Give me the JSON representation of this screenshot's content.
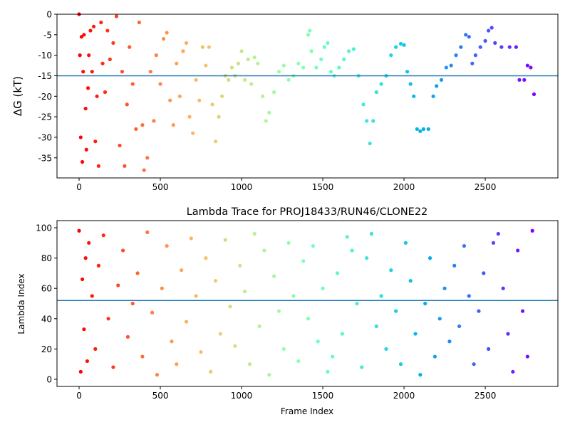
{
  "chart_data": [
    {
      "type": "scatter",
      "ylabel": "ΔG (kT)",
      "colormap": "rainbow_r",
      "hline": -15,
      "hline_color": "#1f77b4",
      "xlim": [
        -136,
        2947
      ],
      "ylim": [
        -39.9,
        0
      ],
      "xticks": [
        0,
        500,
        1000,
        1500,
        2000,
        2500
      ],
      "yticks": [
        0,
        -5,
        -10,
        -15,
        -20,
        -25,
        -30,
        -35
      ],
      "x": [
        0,
        5,
        10,
        15,
        20,
        25,
        30,
        40,
        45,
        55,
        60,
        70,
        80,
        90,
        100,
        110,
        120,
        135,
        145,
        160,
        175,
        190,
        210,
        230,
        250,
        265,
        280,
        295,
        310,
        330,
        350,
        370,
        390,
        400,
        420,
        440,
        460,
        475,
        500,
        520,
        540,
        560,
        580,
        600,
        620,
        640,
        660,
        680,
        700,
        720,
        740,
        760,
        780,
        800,
        820,
        840,
        860,
        880,
        900,
        920,
        940,
        960,
        980,
        1000,
        1020,
        1040,
        1060,
        1080,
        1100,
        1130,
        1150,
        1170,
        1200,
        1230,
        1260,
        1290,
        1320,
        1350,
        1380,
        1410,
        1420,
        1430,
        1460,
        1490,
        1510,
        1530,
        1550,
        1570,
        1600,
        1630,
        1660,
        1690,
        1720,
        1750,
        1770,
        1790,
        1810,
        1830,
        1860,
        1890,
        1920,
        1950,
        1980,
        2000,
        2020,
        2040,
        2060,
        2080,
        2100,
        2120,
        2150,
        2180,
        2200,
        2230,
        2260,
        2290,
        2320,
        2350,
        2380,
        2400,
        2420,
        2440,
        2470,
        2500,
        2520,
        2540,
        2560,
        2600,
        2650,
        2690,
        2710,
        2740,
        2760,
        2780,
        2800
      ],
      "values": [
        0,
        -10,
        -30,
        -5.5,
        -36,
        -14,
        -5,
        -23,
        -33,
        -18,
        -10,
        -4,
        -14,
        -3,
        -31,
        -20,
        -37,
        -2,
        -12,
        -19,
        -4,
        -11,
        -7,
        -0.5,
        -32,
        -14,
        -37,
        -22,
        -8,
        -17,
        -28,
        -2,
        -27,
        -38,
        -35,
        -14,
        -26,
        -10,
        -17,
        -6,
        -4.5,
        -21,
        -27,
        -12,
        -20,
        -9,
        -7,
        -25,
        -29,
        -16,
        -21,
        -8,
        -12.5,
        -8,
        -22,
        -31,
        -25,
        -20,
        -15,
        -16,
        -13,
        -15,
        -12,
        -9,
        -16,
        -11,
        -17,
        -10.5,
        -12,
        -20,
        -26,
        -24,
        -19,
        -14,
        -12.5,
        -16,
        -15,
        -12,
        -13,
        -5,
        -4,
        -9,
        -13,
        -11,
        -8,
        -7,
        -14,
        -15,
        -13,
        -11,
        -9,
        -8.5,
        -15,
        -22,
        -26,
        -31.5,
        -26,
        -19,
        -17,
        -15,
        -10,
        -8,
        -7.2,
        -7.5,
        -14,
        -17,
        -20,
        -28,
        -28.5,
        -28,
        -28,
        -20,
        -17.5,
        -16,
        -13,
        -12.5,
        -10,
        -8,
        -5,
        -5.5,
        -12,
        -10,
        -8,
        -6.5,
        -4,
        -3.3,
        -7,
        -8,
        -8,
        -8,
        -16,
        -16,
        -12.5,
        -13,
        -19.5
      ]
    },
    {
      "type": "scatter",
      "title": "Lambda Trace for PROJ18433/RUN46/CLONE22",
      "xlabel": "Frame Index",
      "ylabel": "Lambda Index",
      "colormap": "rainbow_r",
      "hline": 52,
      "hline_color": "#1f77b4",
      "xlim": [
        -136,
        2947
      ],
      "ylim": [
        -4.7,
        104.7
      ],
      "xticks": [
        0,
        500,
        1000,
        1500,
        2000,
        2500
      ],
      "yticks": [
        0,
        20,
        40,
        60,
        80,
        100
      ],
      "x": [
        0,
        10,
        20,
        30,
        40,
        50,
        60,
        80,
        100,
        120,
        150,
        180,
        210,
        240,
        270,
        300,
        330,
        360,
        390,
        420,
        450,
        480,
        510,
        540,
        570,
        600,
        630,
        660,
        690,
        720,
        750,
        780,
        810,
        840,
        870,
        900,
        930,
        960,
        990,
        1020,
        1050,
        1080,
        1110,
        1140,
        1170,
        1200,
        1230,
        1260,
        1290,
        1320,
        1350,
        1380,
        1410,
        1440,
        1470,
        1500,
        1530,
        1560,
        1590,
        1620,
        1650,
        1680,
        1710,
        1740,
        1770,
        1800,
        1830,
        1860,
        1890,
        1920,
        1950,
        1980,
        2010,
        2040,
        2070,
        2100,
        2130,
        2160,
        2190,
        2220,
        2250,
        2280,
        2310,
        2340,
        2370,
        2400,
        2430,
        2460,
        2490,
        2520,
        2550,
        2580,
        2610,
        2640,
        2670,
        2700,
        2730,
        2760,
        2790
      ],
      "values": [
        98,
        5,
        66,
        33,
        80,
        12,
        90,
        55,
        20,
        75,
        95,
        40,
        8,
        62,
        85,
        28,
        50,
        70,
        15,
        97,
        44,
        3,
        60,
        88,
        25,
        10,
        72,
        38,
        93,
        55,
        18,
        80,
        5,
        65,
        30,
        92,
        48,
        22,
        75,
        58,
        10,
        96,
        35,
        85,
        3,
        68,
        45,
        20,
        90,
        55,
        12,
        78,
        40,
        88,
        25,
        60,
        5,
        15,
        70,
        30,
        94,
        85,
        50,
        8,
        80,
        96,
        35,
        55,
        20,
        72,
        45,
        10,
        90,
        65,
        30,
        3,
        50,
        80,
        15,
        40,
        60,
        25,
        75,
        35,
        88,
        55,
        10,
        45,
        70,
        20,
        90,
        96,
        60,
        30,
        5,
        85,
        45,
        15,
        98
      ]
    }
  ]
}
